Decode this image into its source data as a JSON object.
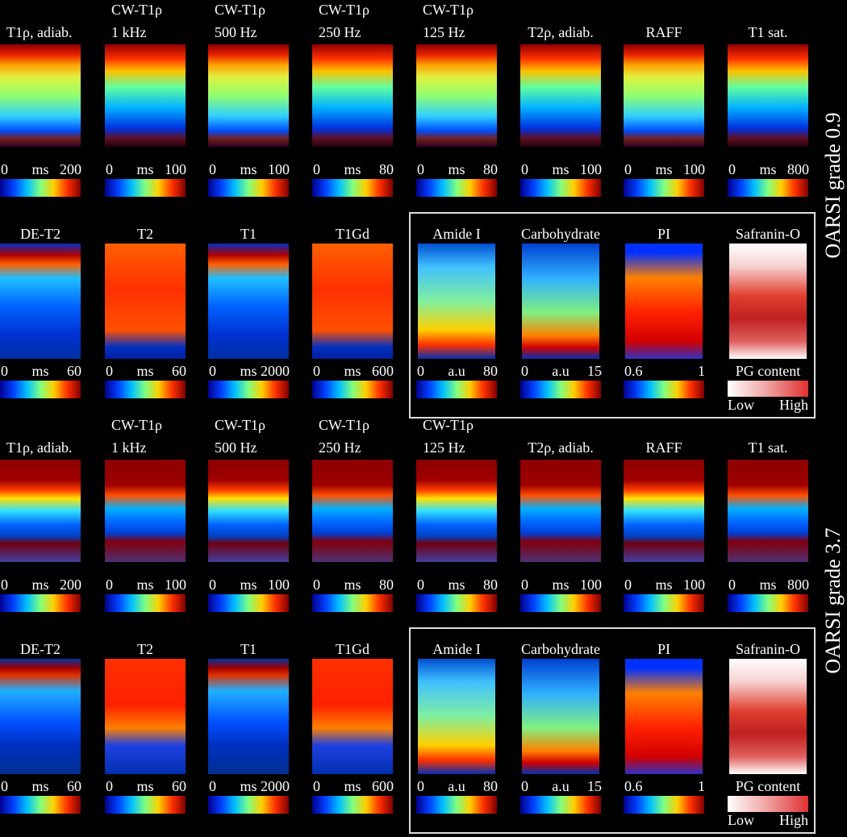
{
  "groups": [
    {
      "label": "OARSI grade 0.9",
      "rows": [
        [
          {
            "title": [
              "T1ρ, adiab."
            ],
            "min": "0",
            "unit": "ms",
            "max": "200"
          },
          {
            "title": [
              "CW-T1ρ",
              "1 kHz"
            ],
            "min": "0",
            "unit": "ms",
            "max": "100"
          },
          {
            "title": [
              "CW-T1ρ",
              "500 Hz"
            ],
            "min": "0",
            "unit": "ms",
            "max": "100"
          },
          {
            "title": [
              "CW-T1ρ",
              "250 Hz"
            ],
            "min": "0",
            "unit": "ms",
            "max": "80"
          },
          {
            "title": [
              "CW-T1ρ",
              "125 Hz"
            ],
            "min": "0",
            "unit": "ms",
            "max": "80"
          },
          {
            "title": [
              "T2ρ, adiab."
            ],
            "min": "0",
            "unit": "ms",
            "max": "100"
          },
          {
            "title": [
              "RAFF"
            ],
            "min": "0",
            "unit": "ms",
            "max": "100"
          },
          {
            "title": [
              "T1 sat."
            ],
            "min": "0",
            "unit": "ms",
            "max": "800"
          }
        ],
        [
          {
            "title": [
              "DE-T2"
            ],
            "min": "0",
            "unit": "ms",
            "max": "60"
          },
          {
            "title": [
              "T2"
            ],
            "min": "0",
            "unit": "ms",
            "max": "60"
          },
          {
            "title": [
              "T1"
            ],
            "min": "0",
            "unit": "ms",
            "max": "2000"
          },
          {
            "title": [
              "T1Gd"
            ],
            "min": "0",
            "unit": "ms",
            "max": "600"
          },
          {
            "title": [
              "Amide I"
            ],
            "min": "0",
            "unit": "a.u",
            "max": "80"
          },
          {
            "title": [
              "Carbohydrate"
            ],
            "min": "0",
            "unit": "a.u",
            "max": "15"
          },
          {
            "title": [
              "PI"
            ],
            "min": "0.6",
            "max": "1"
          },
          {
            "title": [
              "Safranin-O"
            ],
            "caption": "PG content",
            "low": "Low",
            "high": "High"
          }
        ]
      ]
    },
    {
      "label": "OARSI grade 3.7",
      "rows": [
        [
          {
            "title": [
              "T1ρ, adiab."
            ],
            "min": "0",
            "unit": "ms",
            "max": "200"
          },
          {
            "title": [
              "CW-T1ρ",
              "1 kHz"
            ],
            "min": "0",
            "unit": "ms",
            "max": "100"
          },
          {
            "title": [
              "CW-T1ρ",
              "500 Hz"
            ],
            "min": "0",
            "unit": "ms",
            "max": "100"
          },
          {
            "title": [
              "CW-T1ρ",
              "250 Hz"
            ],
            "min": "0",
            "unit": "ms",
            "max": "80"
          },
          {
            "title": [
              "CW-T1ρ",
              "125 Hz"
            ],
            "min": "0",
            "unit": "ms",
            "max": "80"
          },
          {
            "title": [
              "T2ρ, adiab."
            ],
            "min": "0",
            "unit": "ms",
            "max": "100"
          },
          {
            "title": [
              "RAFF"
            ],
            "min": "0",
            "unit": "ms",
            "max": "100"
          },
          {
            "title": [
              "T1 sat."
            ],
            "min": "0",
            "unit": "ms",
            "max": "800"
          }
        ],
        [
          {
            "title": [
              "DE-T2"
            ],
            "min": "0",
            "unit": "ms",
            "max": "60"
          },
          {
            "title": [
              "T2"
            ],
            "min": "0",
            "unit": "ms",
            "max": "60"
          },
          {
            "title": [
              "T1"
            ],
            "min": "0",
            "unit": "ms",
            "max": "2000"
          },
          {
            "title": [
              "T1Gd"
            ],
            "min": "0",
            "unit": "ms",
            "max": "600"
          },
          {
            "title": [
              "Amide I"
            ],
            "min": "0",
            "unit": "a.u",
            "max": "80"
          },
          {
            "title": [
              "Carbohydrate"
            ],
            "min": "0",
            "unit": "a.u",
            "max": "15"
          },
          {
            "title": [
              "PI"
            ],
            "min": "0.6",
            "max": "1"
          },
          {
            "title": [
              "Safranin-O"
            ],
            "caption": "PG content",
            "low": "Low",
            "high": "High"
          }
        ]
      ]
    }
  ]
}
